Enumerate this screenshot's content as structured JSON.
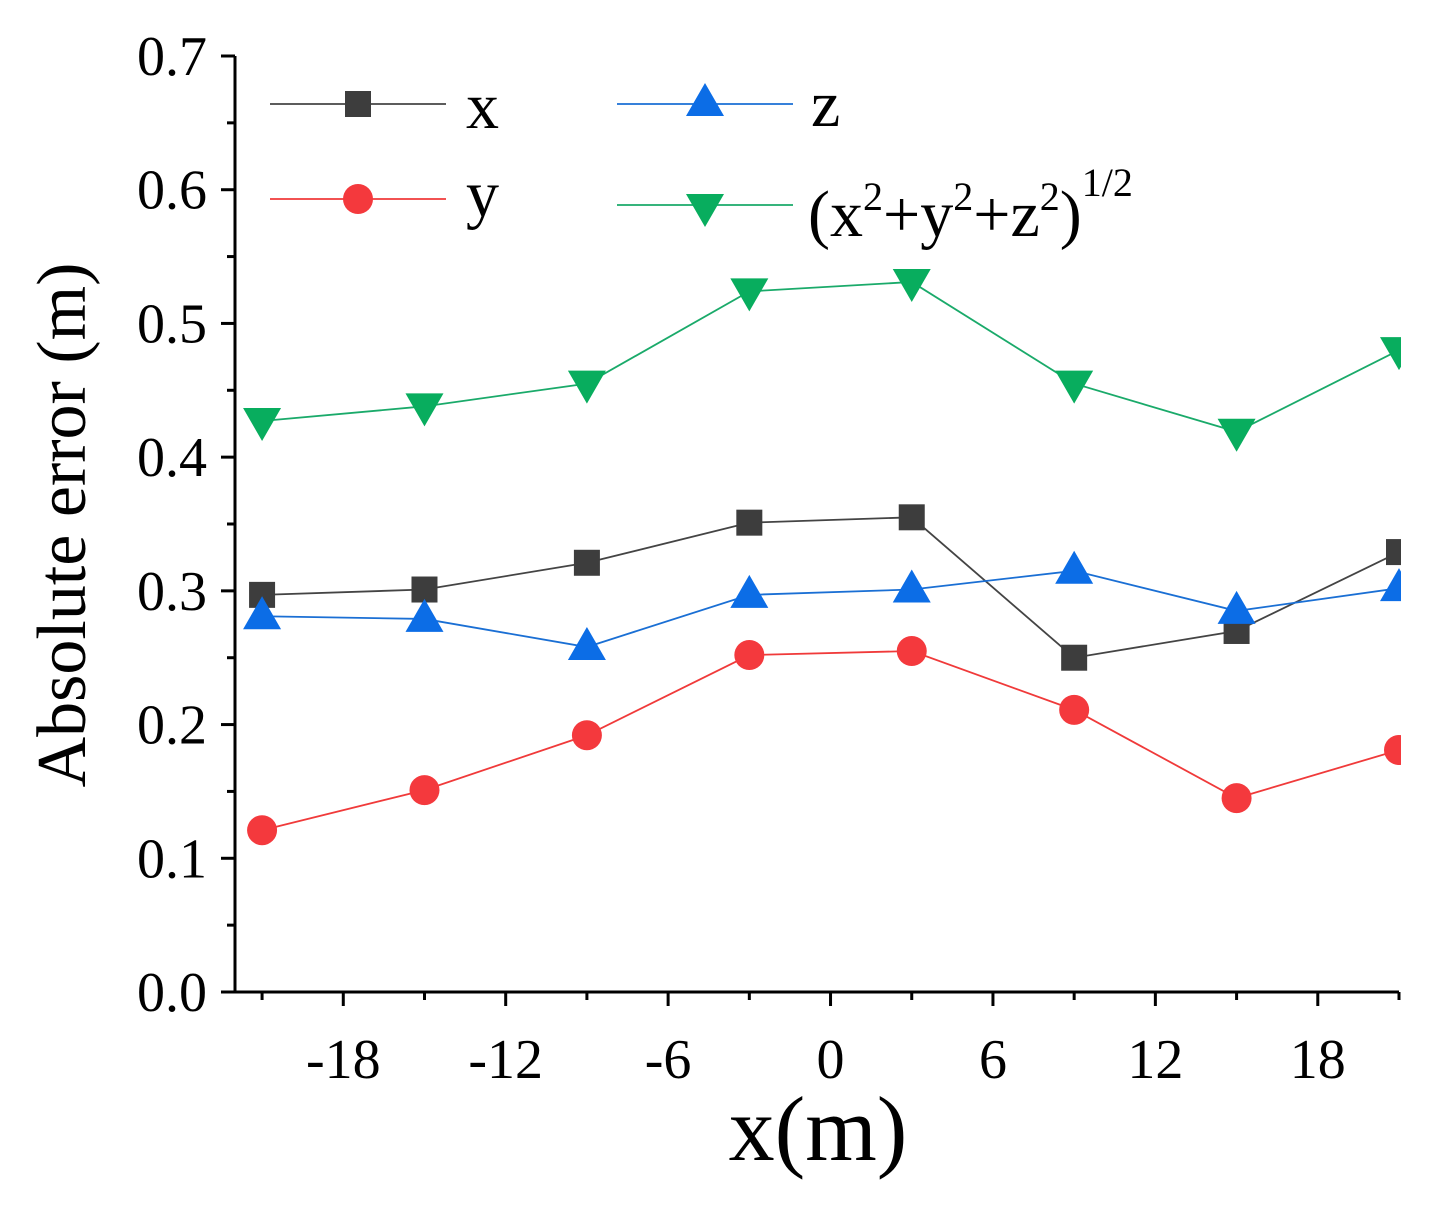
{
  "chart_data": {
    "type": "line",
    "xlabel": "x(m)",
    "ylabel": "Absolute error (m)",
    "xlim": [
      -22,
      21
    ],
    "ylim": [
      0,
      0.7
    ],
    "x_ticks": [
      -18,
      -12,
      -6,
      0,
      6,
      12,
      18
    ],
    "x_tick_labels": [
      "-18",
      "-12",
      "-6",
      "0",
      "6",
      "12",
      "18"
    ],
    "y_ticks": [
      0.0,
      0.1,
      0.2,
      0.3,
      0.4,
      0.5,
      0.6,
      0.7
    ],
    "y_tick_labels": [
      "0.0",
      "0.1",
      "0.2",
      "0.3",
      "0.4",
      "0.5",
      "0.6",
      "0.7"
    ],
    "grid": false,
    "legend_position": "top",
    "x": [
      -21,
      -15,
      -9,
      -3,
      3,
      9,
      15,
      21
    ],
    "series": [
      {
        "key": "x",
        "name": "x",
        "marker": "square",
        "color": "#444444",
        "marker_color": "#3d3d3d",
        "values": [
          0.297,
          0.301,
          0.321,
          0.351,
          0.355,
          0.25,
          0.27,
          0.329
        ]
      },
      {
        "key": "y",
        "name": "y",
        "marker": "circle",
        "color": "#f03a3a",
        "marker_color": "#f4393d",
        "values": [
          0.121,
          0.151,
          0.192,
          0.252,
          0.255,
          0.211,
          0.145,
          0.181
        ]
      },
      {
        "key": "z",
        "name": "z",
        "marker": "triangle-up",
        "color": "#1a6fd4",
        "marker_color": "#0c6de6",
        "values": [
          0.281,
          0.279,
          0.258,
          0.297,
          0.301,
          0.315,
          0.285,
          0.302
        ]
      },
      {
        "key": "r",
        "name": "(x2+y2+z2)1/2",
        "marker": "triangle-down",
        "color": "#1aaa6a",
        "marker_color": "#08ad5e",
        "values": [
          0.427,
          0.438,
          0.455,
          0.524,
          0.531,
          0.455,
          0.419,
          0.48
        ]
      }
    ]
  },
  "legend": {
    "x_label": "x",
    "y_label": "y",
    "z_label": "z",
    "r_label": {
      "p1": "(x",
      "s1": "2",
      "p2": "+y",
      "s2": "2",
      "p3": "+z",
      "s3": "2",
      "p4": ")",
      "s4": "1/2"
    }
  }
}
